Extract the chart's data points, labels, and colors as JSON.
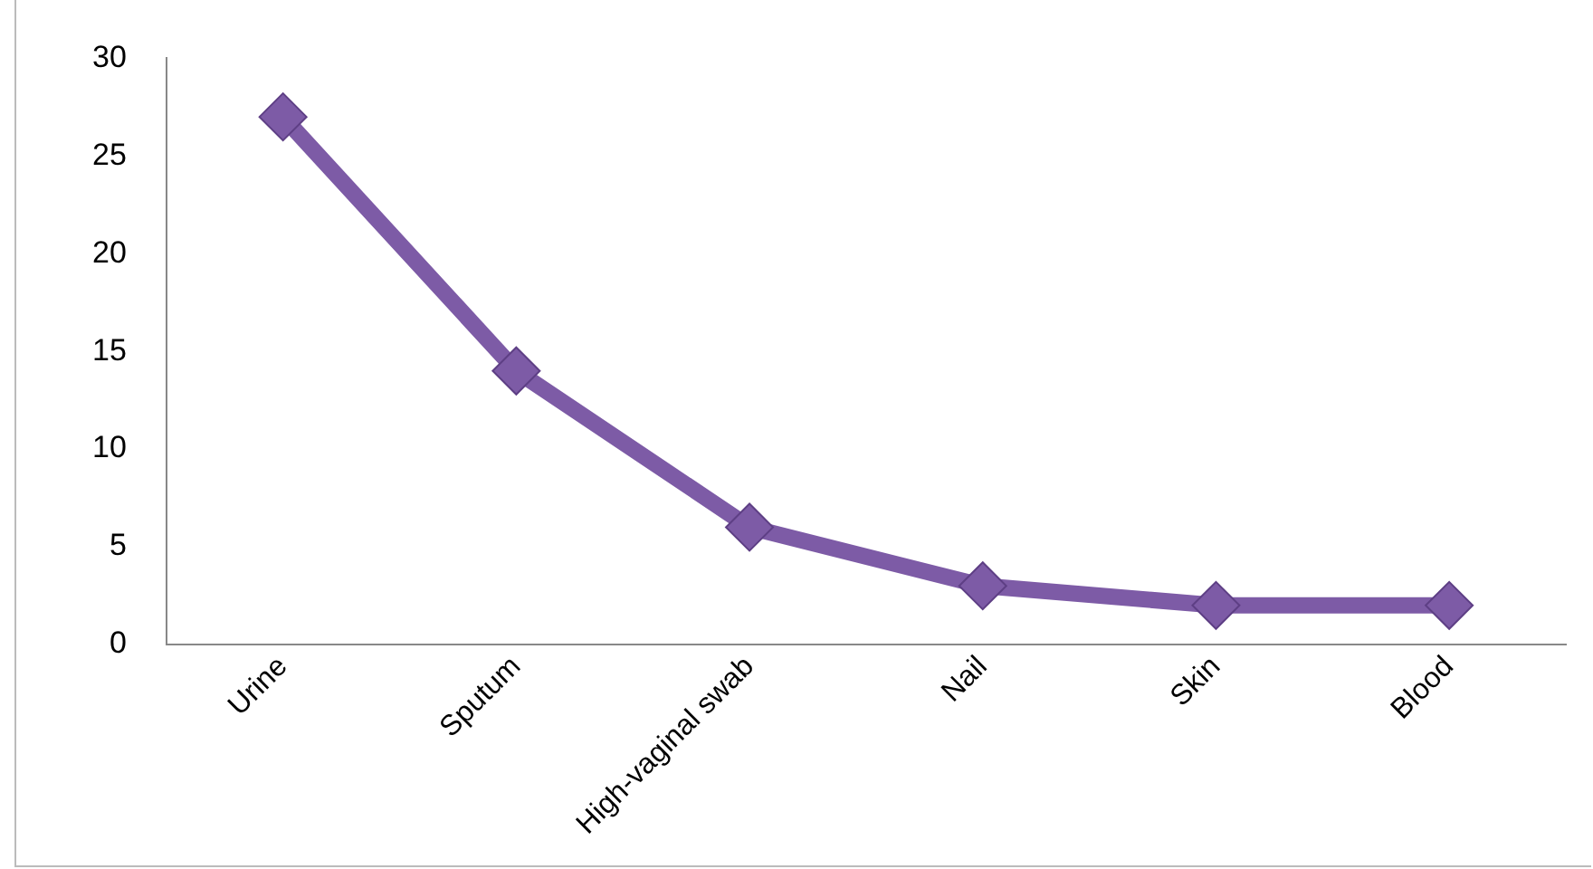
{
  "chart_data": {
    "type": "line",
    "categories": [
      "Urine",
      "Sputum",
      "High-vaginal swab",
      "Nail",
      "Skin",
      "Blood"
    ],
    "series": [
      {
        "color": "#7d5ba6",
        "values": [
          27,
          14,
          6,
          3,
          2,
          2
        ]
      }
    ],
    "ylim": [
      0,
      30
    ],
    "yticks": [
      0,
      5,
      10,
      15,
      20,
      25,
      30
    ],
    "grid": false,
    "legend": false,
    "marker": "diamond",
    "line_style": "solid"
  }
}
